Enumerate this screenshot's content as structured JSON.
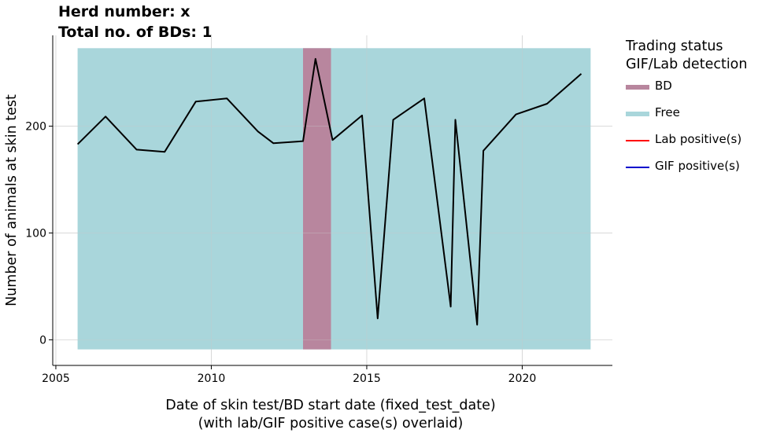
{
  "title_lines": [
    "Herd number: x",
    "Total no. of BDs: 1"
  ],
  "chart_data": {
    "type": "line",
    "xlabel": [
      "Date of skin test/BD start date (fixed_test_date)",
      "(with lab/GIF positive case(s) overlaid)"
    ],
    "ylabel": "Number of animals at skin test",
    "xlim": [
      2004.9,
      2022.9
    ],
    "ylim": [
      -24,
      285
    ],
    "xticks": [
      2005,
      2010,
      2015,
      2020
    ],
    "yticks": [
      0,
      100,
      200
    ],
    "grid": true,
    "series": [
      {
        "type": "line",
        "color": "#000000",
        "x": [
          2005.7,
          2006.6,
          2007.6,
          2008.5,
          2009.5,
          2010.5,
          2011.5,
          2012.0,
          2012.95,
          2013.35,
          2013.9,
          2014.85,
          2015.35,
          2015.85,
          2016.85,
          2017.7,
          2017.85,
          2018.55,
          2018.75,
          2019.8,
          2020.8,
          2021.9
        ],
        "y": [
          183,
          209,
          178,
          176,
          223,
          226,
          195,
          184,
          186,
          263,
          187,
          210,
          20,
          206,
          226,
          31,
          206,
          14,
          177,
          211,
          221,
          249
        ]
      }
    ],
    "bands": [
      {
        "name": "Free",
        "x": [
          2005.7,
          2022.2
        ],
        "color": "#a9d6db"
      },
      {
        "name": "BD",
        "x": [
          2012.95,
          2013.85
        ],
        "color": "#b8869e"
      }
    ],
    "band_y_extent": [
      -9,
      273
    ]
  },
  "legend": {
    "title_lines": [
      "Trading status",
      "GIF/Lab detection"
    ],
    "items": [
      {
        "label": "BD",
        "color": "#b8869e",
        "kind": "band"
      },
      {
        "label": "Free",
        "color": "#a9d6db",
        "kind": "band"
      },
      {
        "label": "Lab positive(s)",
        "color": "#ff0000",
        "kind": "line"
      },
      {
        "label": "GIF positive(s)",
        "color": "#0000cc",
        "kind": "line"
      }
    ]
  }
}
